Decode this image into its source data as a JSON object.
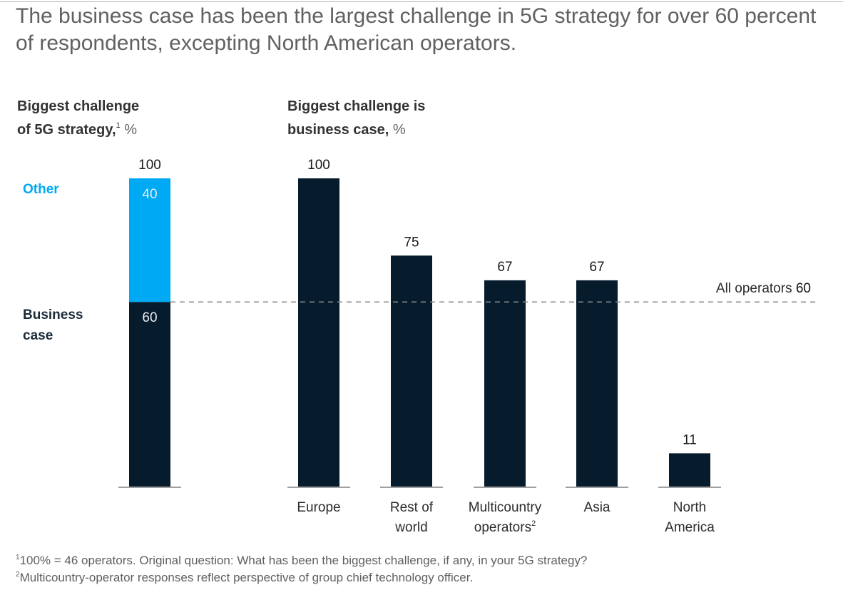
{
  "title": "The business case has been the largest challenge in 5G strategy for over 60 percent of respondents, excepting North American operators.",
  "colors": {
    "business_case": "#061c2c",
    "other": "#00a9f4",
    "reference_line": "#8a8a8a",
    "baseline": "#a0a0a0"
  },
  "chart_data": [
    {
      "type": "bar",
      "stacked": true,
      "title_line1": "Biggest challenge",
      "title_line2": "of 5G strategy,",
      "title_footnote": "1",
      "title_unit": "%",
      "total_label": "100",
      "ylim": [
        0,
        100
      ],
      "series": [
        {
          "name": "Business case",
          "name_line1": "Business",
          "name_line2": "case",
          "value": 60,
          "label": "60",
          "color": "#061c2c"
        },
        {
          "name": "Other",
          "value": 40,
          "label": "40",
          "color": "#00a9f4"
        }
      ]
    },
    {
      "type": "bar",
      "title_line1": "Biggest challenge is",
      "title_line2": "business case,",
      "title_unit": "%",
      "ylim": [
        0,
        100
      ],
      "categories": [
        {
          "line1": "Europe",
          "line2": "",
          "footnote": ""
        },
        {
          "line1": "Rest of",
          "line2": "world",
          "footnote": ""
        },
        {
          "line1": "Multicountry",
          "line2": "operators",
          "footnote": "2"
        },
        {
          "line1": "Asia",
          "line2": "",
          "footnote": ""
        },
        {
          "line1": "North",
          "line2": "America",
          "footnote": ""
        }
      ],
      "values": [
        100,
        75,
        67,
        67,
        11
      ],
      "labels": [
        "100",
        "75",
        "67",
        "67",
        "11"
      ],
      "reference_line": {
        "label": "All operators",
        "value": 60,
        "value_label": "60"
      }
    }
  ],
  "footnotes": [
    {
      "marker": "1",
      "text": "100% = 46 operators. Original question: What has been the biggest challenge, if any, in your 5G strategy?"
    },
    {
      "marker": "2",
      "text": "Multicountry-operator responses reflect perspective of group chief technology officer."
    }
  ]
}
